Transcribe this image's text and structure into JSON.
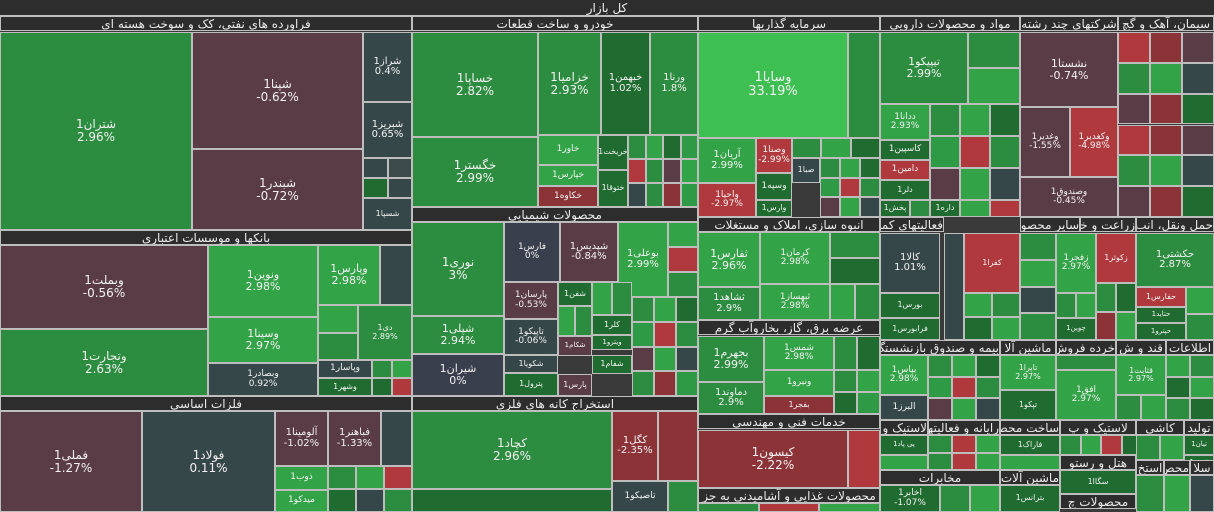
{
  "title": "کل بازار",
  "colors": {
    "g1": "#2c8c3f",
    "g2": "#33a347",
    "g3": "#2e9a45",
    "g4": "#3dbf52",
    "g5": "#1f6b30",
    "r1": "#b0393d",
    "r2": "#8c3338",
    "m1": "#5a3c46",
    "m2": "#4a3b48",
    "d1": "#36474a",
    "d2": "#3a3f4e",
    "n": "#3d4a4c"
  },
  "chart_data": {
    "type": "treemap",
    "title": "کل بازار",
    "sectors": [
      {
        "name": "فراورده های نفتی، کک و سوخت هسته ای",
        "items": [
          {
            "name": "شتران1",
            "change": "2.96%"
          },
          {
            "name": "شپنا1",
            "change": "-0.62%"
          },
          {
            "name": "شبندر1",
            "change": "-0.72%"
          },
          {
            "name": "شراز1",
            "change": "0.4%"
          },
          {
            "name": "شبریز1",
            "change": "0.65%"
          },
          {
            "name": "شسپا1",
            "change": ""
          }
        ]
      },
      {
        "name": "خودرو و ساخت قطعات",
        "items": [
          {
            "name": "خساپا1",
            "change": "2.82%"
          },
          {
            "name": "خزامیا1",
            "change": "2.93%"
          },
          {
            "name": "خبهمن1",
            "change": "1.02%"
          },
          {
            "name": "ورنا1",
            "change": "1.8%"
          },
          {
            "name": "خگستر1",
            "change": "2.99%"
          },
          {
            "name": "خاور1",
            "change": ""
          },
          {
            "name": "خپارس1",
            "change": ""
          },
          {
            "name": "خکاوه1",
            "change": ""
          },
          {
            "name": "خریخت1",
            "change": ""
          },
          {
            "name": "ختوقا1",
            "change": ""
          }
        ]
      },
      {
        "name": "سرمایه گذاریها",
        "items": [
          {
            "name": "وسایا1",
            "change": "33.19%"
          },
          {
            "name": "آریان1",
            "change": "2.99%"
          },
          {
            "name": "وصنا1",
            "change": "-2.99%"
          },
          {
            "name": "وسپه1",
            "change": ""
          },
          {
            "name": "واحیا1",
            "change": "-2.97%"
          },
          {
            "name": "صبا1",
            "change": ""
          },
          {
            "name": "وارس1",
            "change": ""
          }
        ]
      },
      {
        "name": "مواد و محصولات دارویی",
        "items": [
          {
            "name": "تیپیکو1",
            "change": "2.99%"
          },
          {
            "name": "ددانا1",
            "change": "2.93%"
          },
          {
            "name": "کاسپین1",
            "change": ""
          },
          {
            "name": "دامین1",
            "change": ""
          },
          {
            "name": "دلر1",
            "change": ""
          },
          {
            "name": "پخش1",
            "change": ""
          },
          {
            "name": "داره1",
            "change": ""
          }
        ]
      },
      {
        "name": "شرکتهای چند رشته",
        "items": [
          {
            "name": "نشستا1",
            "change": "-0.74%"
          },
          {
            "name": "وغدیر1",
            "change": "-1.55%"
          },
          {
            "name": "وکغدیر1",
            "change": "-4.98%"
          },
          {
            "name": "وصندوق1",
            "change": "-0.45%"
          }
        ]
      },
      {
        "name": "سیمان، آهک و گچ",
        "items": []
      },
      {
        "name": "بانکها و موسسات اعتباری",
        "items": [
          {
            "name": "وبملت1",
            "change": "-0.56%"
          },
          {
            "name": "ونوین1",
            "change": "2.98%"
          },
          {
            "name": "وپارس1",
            "change": "2.98%"
          },
          {
            "name": "وتجارت1",
            "change": "2.63%"
          },
          {
            "name": "وسینا1",
            "change": "2.97%"
          },
          {
            "name": "وبصادر1",
            "change": "0.92%"
          },
          {
            "name": "دی1",
            "change": "2.89%"
          },
          {
            "name": "وپاسار1",
            "change": ""
          },
          {
            "name": "وشهر1",
            "change": ""
          }
        ]
      },
      {
        "name": "محصولات شیمیایی",
        "items": [
          {
            "name": "نوری1",
            "change": "3%"
          },
          {
            "name": "فارس1",
            "change": "0%"
          },
          {
            "name": "شپدیس1",
            "change": "-0.84%"
          },
          {
            "name": "بوعلی1",
            "change": "2.99%"
          },
          {
            "name": "شپلی1",
            "change": "2.94%"
          },
          {
            "name": "پارسان1",
            "change": "-0.53%"
          },
          {
            "name": "تاپیکو1",
            "change": "-0.06%"
          },
          {
            "name": "شیران1",
            "change": "0%"
          },
          {
            "name": "شکویا1",
            "change": ""
          },
          {
            "name": "شفن1",
            "change": ""
          },
          {
            "name": "کلر1",
            "change": ""
          },
          {
            "name": "شکام1",
            "change": ""
          },
          {
            "name": "ویترو1",
            "change": ""
          },
          {
            "name": "پترول1",
            "change": ""
          },
          {
            "name": "شفام1",
            "change": ""
          },
          {
            "name": "پارس1",
            "change": ""
          }
        ]
      },
      {
        "name": "انبوه سازی، املاک و مستغلات",
        "items": [
          {
            "name": "ثفارس1",
            "change": "2.96%"
          },
          {
            "name": "کرمان1",
            "change": "2.98%"
          },
          {
            "name": "ثشاهد1",
            "change": "2.9%"
          },
          {
            "name": "ثبهساز1",
            "change": "2.98%"
          }
        ]
      },
      {
        "name": "عرضه برق، گاز، بخاروآب گرم",
        "items": [
          {
            "name": "بجهرم1",
            "change": "2.99%"
          },
          {
            "name": "شمس1",
            "change": "2.98%"
          },
          {
            "name": "ونیرو1",
            "change": ""
          },
          {
            "name": "دماوند1",
            "change": "2.9%"
          },
          {
            "name": "بفجر1",
            "change": ""
          }
        ]
      },
      {
        "name": "خدمات فنی و مهندسی",
        "items": [
          {
            "name": "کیسون1",
            "change": "-2.22%"
          }
        ]
      },
      {
        "name": "فلزات اساسی",
        "items": [
          {
            "name": "فملی1",
            "change": "-1.27%"
          },
          {
            "name": "فولاد1",
            "change": "0.11%"
          },
          {
            "name": "آلومینا1",
            "change": "-1.02%"
          },
          {
            "name": "فباهنر1",
            "change": "-1.33%"
          },
          {
            "name": "ذوب1",
            "change": ""
          },
          {
            "name": "میدکو1",
            "change": ""
          }
        ]
      },
      {
        "name": "استخراج کانه های فلزی",
        "items": [
          {
            "name": "کچاد1",
            "change": "2.96%"
          },
          {
            "name": "کگل1",
            "change": "-2.35%"
          },
          {
            "name": "تاصیکو1",
            "change": ""
          }
        ]
      },
      {
        "name": "حمل ونقل، انب",
        "items": [
          {
            "name": "حکشتی1",
            "change": "2.87%"
          },
          {
            "name": "حفارس1",
            "change": ""
          },
          {
            "name": "حتاید1",
            "change": ""
          },
          {
            "name": "حپترو1",
            "change": ""
          }
        ]
      },
      {
        "name": "زراعت و خدما",
        "items": [
          {
            "name": "زاگرو1",
            "change": ""
          },
          {
            "name": "زکوثر1",
            "change": ""
          }
        ]
      },
      {
        "name": "سایر محصولات",
        "items": [
          {
            "name": "زفجر1",
            "change": "2.97%"
          },
          {
            "name": "چوین1",
            "change": ""
          }
        ]
      },
      {
        "name": "فعالیتهای کمکی ب",
        "items": [
          {
            "name": "کالا1",
            "change": "1.01%"
          },
          {
            "name": "بورس1",
            "change": ""
          },
          {
            "name": "فرابورس1",
            "change": ""
          },
          {
            "name": "کفرا1",
            "change": ""
          }
        ]
      },
      {
        "name": "بیمه و صندوق بازنشستگ",
        "items": [
          {
            "name": "بپاس1",
            "change": "2.98%"
          },
          {
            "name": "البرز1",
            "change": ""
          }
        ]
      },
      {
        "name": "ماشین آلا",
        "items": [
          {
            "name": "تاپرا1",
            "change": "2.97%"
          },
          {
            "name": "تپکو1",
            "change": ""
          }
        ]
      },
      {
        "name": "خرده فروش",
        "items": [
          {
            "name": "افق1",
            "change": "2.97%"
          }
        ]
      },
      {
        "name": "قند و ش",
        "items": [
          {
            "name": "قثابت1",
            "change": "2.97%"
          }
        ]
      },
      {
        "name": "اطلاعات",
        "items": []
      },
      {
        "name": "لاستیک و پ",
        "items": [
          {
            "name": "پی پاد1",
            "change": ""
          }
        ]
      },
      {
        "name": "رایانه و فعالیتهای وا",
        "items": []
      },
      {
        "name": "ساخت محص",
        "items": [
          {
            "name": "فاراک1",
            "change": ""
          }
        ]
      },
      {
        "name": "کاشی",
        "items": []
      },
      {
        "name": "تولید",
        "items": [
          {
            "name": "تیان1",
            "change": ""
          },
          {
            "name": "فتوی1",
            "change": ""
          }
        ]
      },
      {
        "name": "هتل و رستو",
        "items": [
          {
            "name": "سگاا1",
            "change": ""
          }
        ]
      },
      {
        "name": "محصولات چ",
        "items": []
      },
      {
        "name": "استخ",
        "items": []
      },
      {
        "name": "محص",
        "items": []
      },
      {
        "name": "سلا",
        "items": []
      },
      {
        "name": "مخابرات",
        "items": [
          {
            "name": "اخابر1",
            "change": "-1.07%"
          }
        ]
      },
      {
        "name": "ماشین آلات",
        "items": [
          {
            "name": "بترانس1",
            "change": ""
          }
        ]
      },
      {
        "name": "محصولات غذایی و آشامیدنی به جز",
        "items": [
          {
            "name": "غصا1",
            "change": ""
          }
        ]
      }
    ]
  }
}
